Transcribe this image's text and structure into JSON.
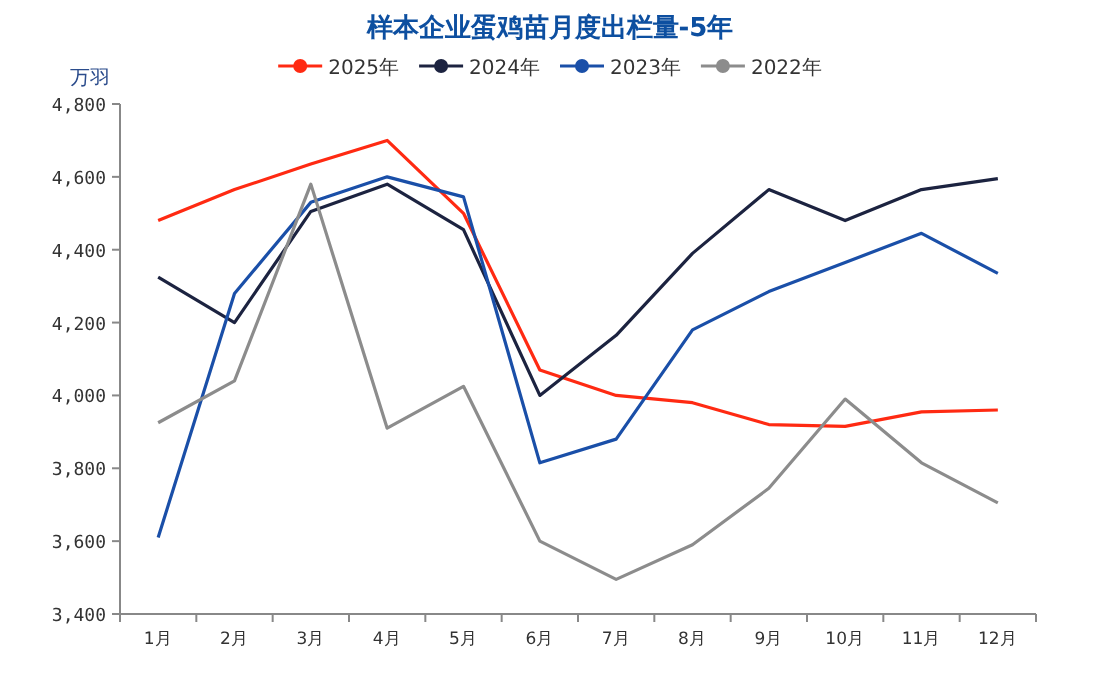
{
  "chart_data": {
    "type": "line",
    "title": "样本企业蛋鸡苗月度出栏量-5年",
    "ylabel": "万羽",
    "legend": "top",
    "grid": false,
    "categories": [
      "1月",
      "2月",
      "3月",
      "4月",
      "5月",
      "6月",
      "7月",
      "8月",
      "9月",
      "10月",
      "11月",
      "12月"
    ],
    "ylim": [
      3400,
      4800
    ],
    "yticks": [
      {
        "value": 3400,
        "label": "3,400"
      },
      {
        "value": 3600,
        "label": "3,600"
      },
      {
        "value": 3800,
        "label": "3,800"
      },
      {
        "value": 4000,
        "label": "4,000"
      },
      {
        "value": 4200,
        "label": "4,200"
      },
      {
        "value": 4400,
        "label": "4,400"
      },
      {
        "value": 4600,
        "label": "4,600"
      },
      {
        "value": 4800,
        "label": "4,800"
      }
    ],
    "series": [
      {
        "name": "2025年",
        "color": "#ff2a12",
        "values": [
          4480,
          4565,
          4635,
          4700,
          4500,
          4070,
          4000,
          3980,
          3920,
          3915,
          3955,
          3960
        ]
      },
      {
        "name": "2024年",
        "color": "#1c2340",
        "values": [
          4325,
          4200,
          4505,
          4580,
          4455,
          4000,
          4165,
          4390,
          4565,
          4480,
          4565,
          4595
        ]
      },
      {
        "name": "2023年",
        "color": "#1a4fa8",
        "values": [
          3610,
          4280,
          4530,
          4600,
          4545,
          3815,
          3880,
          4180,
          4285,
          4365,
          4445,
          4335
        ]
      },
      {
        "name": "2022年",
        "color": "#8c8c8c",
        "values": [
          3925,
          4040,
          4580,
          3910,
          4025,
          3600,
          3495,
          3590,
          3745,
          3990,
          3815,
          3705
        ]
      }
    ]
  }
}
